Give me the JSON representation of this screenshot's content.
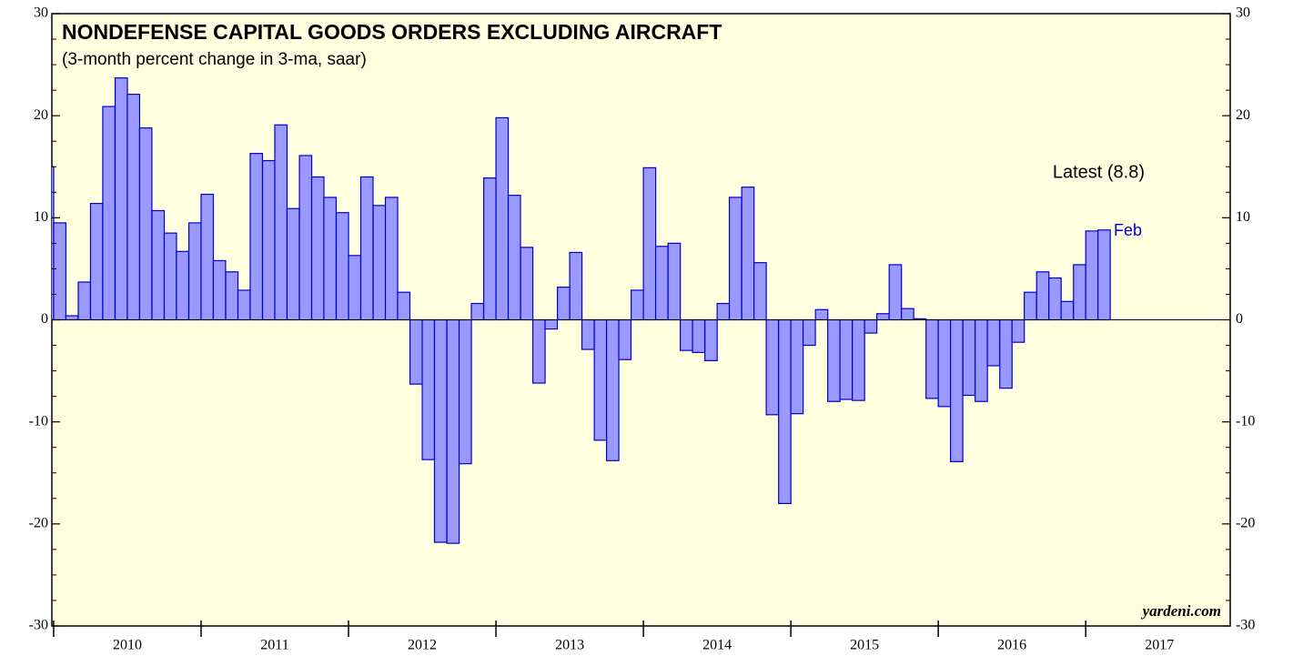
{
  "chart_data": {
    "type": "bar",
    "title": "NONDEFENSE CAPITAL GOODS ORDERS EXCLUDING AIRCRAFT",
    "subtitle": "(3-month percent change in 3-ma, saar)",
    "annotations": {
      "latest": "Latest (8.8)",
      "last_month": "Feb",
      "source": "yardeni.com"
    },
    "x": [
      2009.917,
      2010,
      2010.083,
      2010.167,
      2010.25,
      2010.333,
      2010.417,
      2010.5,
      2010.583,
      2010.667,
      2010.75,
      2010.833,
      2010.917,
      2011,
      2011.083,
      2011.167,
      2011.25,
      2011.333,
      2011.417,
      2011.5,
      2011.583,
      2011.667,
      2011.75,
      2011.833,
      2011.917,
      2012,
      2012.083,
      2012.167,
      2012.25,
      2012.333,
      2012.417,
      2012.5,
      2012.583,
      2012.667,
      2012.75,
      2012.833,
      2012.917,
      2013,
      2013.083,
      2013.167,
      2013.25,
      2013.333,
      2013.417,
      2013.5,
      2013.583,
      2013.667,
      2013.75,
      2013.833,
      2013.917,
      2014,
      2014.083,
      2014.167,
      2014.25,
      2014.333,
      2014.417,
      2014.5,
      2014.583,
      2014.667,
      2014.75,
      2014.833,
      2014.917,
      2015,
      2015.083,
      2015.167,
      2015.25,
      2015.333,
      2015.417,
      2015.5,
      2015.583,
      2015.667,
      2015.75,
      2015.833,
      2015.917,
      2016,
      2016.083,
      2016.167,
      2016.25,
      2016.333,
      2016.417,
      2016.5,
      2016.583,
      2016.667,
      2016.75,
      2016.833,
      2016.917,
      2017,
      2017.083
    ],
    "values": [
      15,
      9.5,
      0.4,
      3.7,
      11.4,
      20.9,
      23.7,
      22.1,
      18.8,
      10.7,
      8.5,
      6.7,
      9.5,
      12.3,
      5.8,
      4.7,
      2.9,
      16.3,
      15.6,
      19.1,
      10.9,
      16.1,
      14.0,
      12.0,
      10.5,
      6.3,
      14.0,
      11.2,
      12.0,
      2.7,
      -6.3,
      -13.7,
      -21.8,
      -21.9,
      -14.1,
      1.6,
      13.9,
      19.8,
      12.2,
      7.1,
      -6.2,
      -0.9,
      3.2,
      6.6,
      -2.9,
      -11.8,
      -13.8,
      -3.9,
      2.9,
      14.9,
      7.2,
      7.5,
      -3.0,
      -3.2,
      -4.0,
      1.6,
      12.0,
      13.0,
      5.6,
      -9.3,
      -18.0,
      -9.2,
      -2.5,
      1.0,
      -8.0,
      -7.8,
      -7.9,
      -1.3,
      0.6,
      5.4,
      1.1,
      0.1,
      -7.7,
      -8.5,
      -13.9,
      -7.4,
      -8.0,
      -4.5,
      -6.7,
      -2.2,
      2.7,
      4.7,
      4.1,
      1.8,
      5.4,
      8.7,
      8.8
    ],
    "color": "#9999ff",
    "edge_color": "#0000cc",
    "xlim": [
      2009.988,
      2017.98
    ],
    "xticks": [
      2010,
      2011,
      2012,
      2013,
      2014,
      2015,
      2016,
      2017
    ],
    "ylim": [
      -30,
      30
    ],
    "yticks": [
      -30,
      -20,
      -10,
      0,
      10,
      20,
      30
    ]
  }
}
